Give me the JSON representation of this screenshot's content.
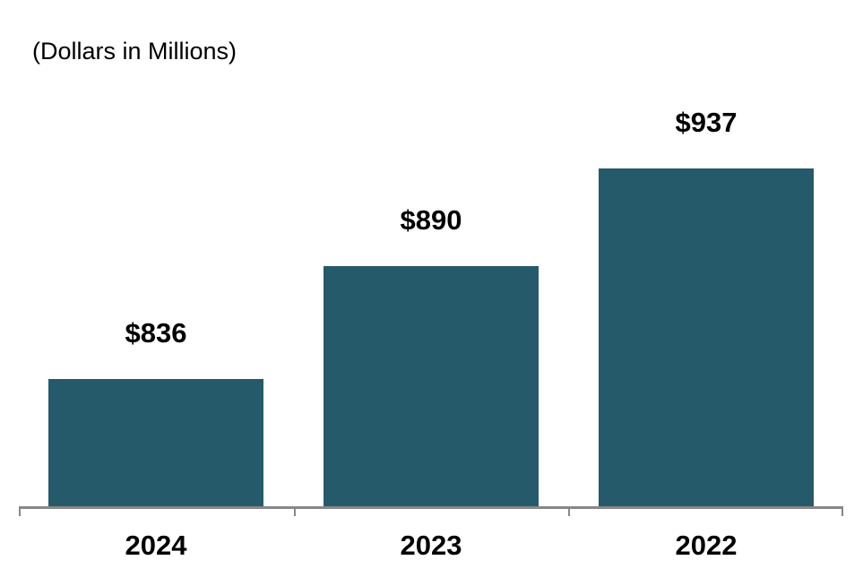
{
  "chart_data": {
    "type": "bar",
    "title": "(Dollars in Millions)",
    "categories": [
      "2024",
      "2023",
      "2022"
    ],
    "values": [
      836,
      890,
      937
    ],
    "value_labels": [
      "$836",
      "$890",
      "$937"
    ],
    "series_name": "Dollars in Millions",
    "xlabel": "",
    "ylabel": "",
    "ylim": [
      775,
      975
    ],
    "grid": false,
    "legend": false,
    "y_axis_visible": false,
    "x_axis_visible": true,
    "bar_color": "#255A6B",
    "axis_color": "#888888",
    "label_color": "#000000",
    "background_color": "#FFFFFF"
  }
}
